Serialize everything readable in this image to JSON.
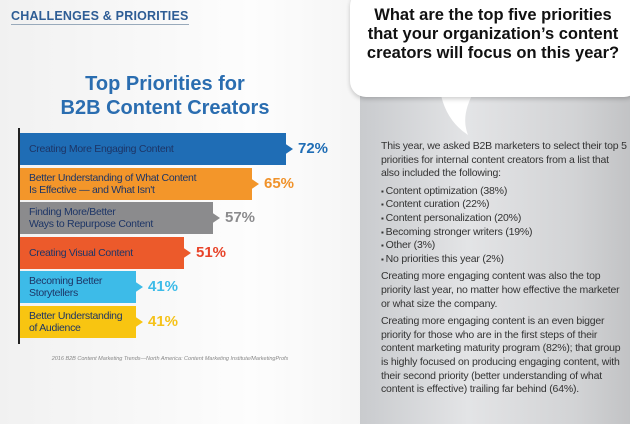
{
  "section_label": "CHALLENGES & PRIORITIES",
  "chart_data": {
    "type": "bar",
    "orientation": "horizontal",
    "title": "Top Priorities for B2B Content Creators",
    "title_lines": [
      "Top Priorities for",
      "B2B Content Creators"
    ],
    "categories": [
      [
        "Creating More Engaging Content"
      ],
      [
        "Better Understanding of What Content",
        "Is Effective — and What Isn't"
      ],
      [
        "Finding More/Better",
        "Ways to Repurpose Content"
      ],
      [
        "Creating Visual Content"
      ],
      [
        "Becoming Better",
        "Storytellers"
      ],
      [
        "Better Understanding",
        "of Audience"
      ]
    ],
    "values": [
      72,
      65,
      57,
      51,
      41,
      41
    ],
    "value_labels": [
      "72%",
      "65%",
      "57%",
      "51%",
      "41%",
      "41%"
    ],
    "colors": [
      "#1f6db5",
      "#f3962a",
      "#8b8b8d",
      "#ec5a2b",
      "#3dbbe8",
      "#f8c511"
    ],
    "value_colors": [
      "#1f6db5",
      "#f0922a",
      "#8b8b8d",
      "#e8442a",
      "#3dbbe8",
      "#f5c21a"
    ],
    "unit": "%",
    "source": "2016 B2B Content Marketing Trends—North America: Content Marketing Institute/MarketingProfs"
  },
  "question": "What are the top five priorities that your organization’s content creators will focus on this year?",
  "body": {
    "intro": "This year, we asked B2B marketers to select their top 5 priorities for internal content creators from a list that also included the following:",
    "list": [
      "Content optimization (38%)",
      "Content curation (22%)",
      "Content personalization (20%)",
      "Becoming stronger writers (19%)",
      "Other (3%)",
      "No priorities this year (2%)"
    ],
    "para2": "Creating more engaging content was also the top priority last year, no matter how effective the marketer or what size the company.",
    "para3": "Creating more engaging content is an even bigger priority for those who are in the first steps of their content marketing maturity program (82%); that group is highly focused on producing engaging content, with their second priority (better understanding of what content is effective) trailing far behind (64%)."
  }
}
